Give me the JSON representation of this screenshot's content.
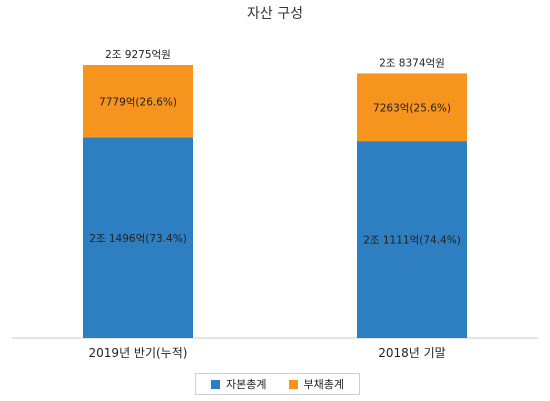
{
  "chart_data": {
    "type": "bar",
    "stacked": true,
    "title": "자산 구성",
    "categories": [
      "2019년 반기(누적)",
      "2018년 기말"
    ],
    "totals": [
      29275,
      28374
    ],
    "total_labels": [
      "2조 9275억원",
      "2조 8374억원"
    ],
    "series": [
      {
        "name": "자본총계",
        "color": "#2e7fc1",
        "values": [
          21496,
          21111
        ],
        "labels": [
          "2조 1496억(73.4%)",
          "2조 1111억(74.4%)"
        ]
      },
      {
        "name": "부채총계",
        "color": "#f7941d",
        "values": [
          7779,
          7263
        ],
        "labels": [
          "7779억(26.6%)",
          "7263억(25.6%)"
        ]
      }
    ],
    "ylim": [
      0,
      29275
    ],
    "grid": false,
    "legend_position": "bottom"
  }
}
